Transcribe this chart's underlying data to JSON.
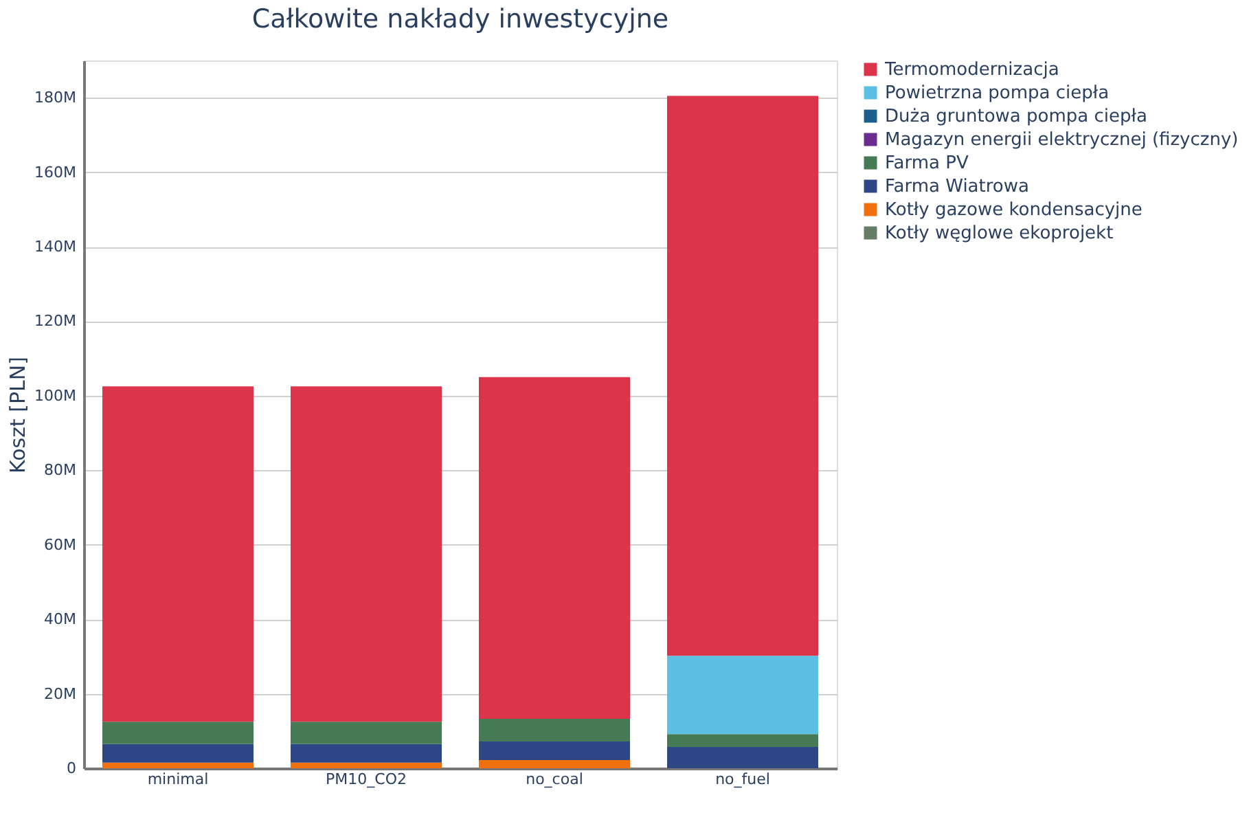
{
  "chart_data": {
    "type": "bar",
    "title": "Całkowite nakłady inwestycyjne",
    "ylabel": "Koszt [PLN]",
    "stacked": true,
    "categories": [
      "minimal",
      "PM10_CO2",
      "no_coal",
      "no_fuel"
    ],
    "series": [
      {
        "name": "Kotły węglowe ekoprojekt",
        "color": "#637d66",
        "values": [
          0,
          0,
          0,
          0
        ]
      },
      {
        "name": "Kotły gazowe kondensacyjne",
        "color": "#f07010",
        "values": [
          1500000,
          1500000,
          2200000,
          0
        ]
      },
      {
        "name": "Farma Wiatrowa",
        "color": "#2c4686",
        "values": [
          5000000,
          5000000,
          5000000,
          5700000
        ]
      },
      {
        "name": "Farma PV",
        "color": "#467a55",
        "values": [
          6000000,
          6000000,
          6100000,
          3500000
        ]
      },
      {
        "name": "Magazyn energii elektrycznej (fizyczny)",
        "color": "#6a2c8e",
        "values": [
          0,
          0,
          0,
          0
        ]
      },
      {
        "name": "Duża gruntowa pompa ciepła",
        "color": "#1b5f8f",
        "values": [
          0,
          0,
          0,
          0
        ]
      },
      {
        "name": "Powietrzna pompa ciepła",
        "color": "#5bc0e4",
        "values": [
          0,
          0,
          0,
          21000000
        ]
      },
      {
        "name": "Termomodernizacja",
        "color": "#dc354b",
        "values": [
          90000000,
          90000000,
          91700000,
          150300000
        ]
      }
    ],
    "ylim": [
      0,
      190000000
    ],
    "yticks": [
      0,
      {
        "value": 20000000,
        "label": "20M"
      },
      {
        "value": 40000000,
        "label": "40M"
      },
      {
        "value": 60000000,
        "label": "60M"
      },
      {
        "value": 80000000,
        "label": "80M"
      },
      {
        "value": 100000000,
        "label": "100M"
      },
      {
        "value": 120000000,
        "label": "120M"
      },
      {
        "value": 140000000,
        "label": "140M"
      },
      {
        "value": 160000000,
        "label": "160M"
      },
      {
        "value": 180000000,
        "label": "180M"
      }
    ],
    "grid": "y",
    "legend": "top right"
  }
}
